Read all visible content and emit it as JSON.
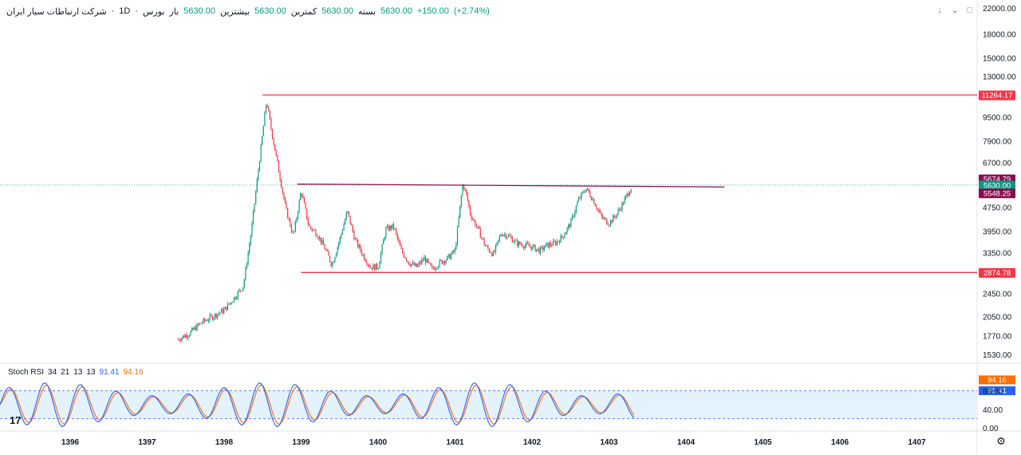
{
  "header": {
    "symbol": "شرکت ارتباطات سیار ایران",
    "interval": "1D",
    "exchange": "بورس",
    "open_label": "باز",
    "open": "5630.00",
    "high_label": "بیشترین",
    "high": "5630.00",
    "low_label": "کمترین",
    "low": "5630.00",
    "close_label": "بسته",
    "close": "5630.00",
    "change": "+150.00",
    "change_pct": "(+2.74%)",
    "separator": "·"
  },
  "indicator": {
    "name": "Stoch RSI",
    "params": [
      "34",
      "21",
      "13",
      "13"
    ],
    "k_value": "91.41",
    "d_value": "94.16",
    "k_color": "#2962ff",
    "d_color": "#ff6d00",
    "band_color": "#e3f2fd"
  },
  "colors": {
    "up": "#089981",
    "down": "#f23645",
    "hline": "#f23645",
    "resistance": "#880e4f",
    "last_price": "#089981",
    "grid": "#f0f3fa"
  },
  "icons": {
    "controls": [
      "arrow-down-icon",
      "collapse-icon",
      "maximize-icon"
    ],
    "logo": "tradingview-logo",
    "settings": "gear-icon"
  },
  "logo_text": "17",
  "chart_data": {
    "type": "candlestick",
    "scale": "log",
    "y_ticks": [
      22000,
      18000,
      15000,
      13000,
      11264.17,
      9500,
      7900,
      6700,
      5674.79,
      5630,
      5548.25,
      4750,
      3950,
      3350,
      2874.78,
      2450,
      2050,
      1770,
      1530
    ],
    "y_tick_labels": [
      "22000.00",
      "18000.00",
      "15000.00",
      "13000.00",
      "9500.00",
      "7900.00",
      "6700.00",
      "4750.00",
      "3950.00",
      "3350.00",
      "2450.00",
      "2050.00",
      "1770.00",
      "1530.00"
    ],
    "x_ticks": [
      "1396",
      "1397",
      "1398",
      "1399",
      "1400",
      "1401",
      "1402",
      "1403",
      "1404",
      "1405",
      "1406",
      "1407"
    ],
    "x_tick_years": [
      1396,
      1397,
      1398,
      1399,
      1400,
      1401,
      1402,
      1403,
      1404,
      1405,
      1406,
      1407
    ],
    "price_series": {
      "x": [
        1397.4,
        1397.55,
        1397.7,
        1397.85,
        1398.0,
        1398.15,
        1398.25,
        1398.35,
        1398.45,
        1398.55,
        1398.6,
        1398.7,
        1398.8,
        1398.9,
        1399.0,
        1399.1,
        1399.2,
        1399.3,
        1399.4,
        1399.5,
        1399.6,
        1399.7,
        1399.8,
        1399.9,
        1400.0,
        1400.1,
        1400.2,
        1400.3,
        1400.4,
        1400.5,
        1400.6,
        1400.7,
        1400.8,
        1400.9,
        1401.0,
        1401.1,
        1401.15,
        1401.2,
        1401.3,
        1401.4,
        1401.5,
        1401.6,
        1401.7,
        1401.8,
        1401.9,
        1402.0,
        1402.1,
        1402.2,
        1402.3,
        1402.4,
        1402.5,
        1402.6,
        1402.7,
        1402.8,
        1402.9,
        1403.0,
        1403.1,
        1403.2,
        1403.3
      ],
      "y": [
        1720,
        1800,
        1950,
        2050,
        2150,
        2400,
        2600,
        3900,
        6500,
        10800,
        9000,
        6500,
        4700,
        3800,
        5400,
        4100,
        3900,
        3500,
        3050,
        3700,
        4600,
        3700,
        3300,
        3000,
        3000,
        4000,
        4100,
        3400,
        3100,
        3000,
        3200,
        2950,
        3100,
        3200,
        3400,
        5700,
        5200,
        4500,
        4000,
        3500,
        3300,
        3900,
        3800,
        3600,
        3550,
        3500,
        3400,
        3550,
        3600,
        3800,
        4200,
        5000,
        5500,
        5000,
        4400,
        4200,
        4500,
        5000,
        5630
      ]
    },
    "lines": [
      {
        "label": "11264.17",
        "value": 11264.17,
        "x_start": 1398.5
      },
      {
        "label": "5674.79",
        "value": 5674.79,
        "x_start": 1398.95,
        "end_value": 5548.25,
        "x_end": 1404.5
      },
      {
        "label": "5630.00",
        "value": 5630.0
      },
      {
        "label": "5548.25",
        "value": 5548.25
      },
      {
        "label": "2874.78",
        "value": 2874.78,
        "x_start": 1399.0
      }
    ],
    "stoch_rsi": {
      "ylim": [
        0,
        100
      ],
      "bands": [
        20,
        80
      ],
      "y_ticks": [
        "80.00",
        "40.00",
        "0.00"
      ],
      "y_tick_values": [
        80,
        40,
        0
      ],
      "k_last": "91.41",
      "d_last": "94.16"
    }
  }
}
